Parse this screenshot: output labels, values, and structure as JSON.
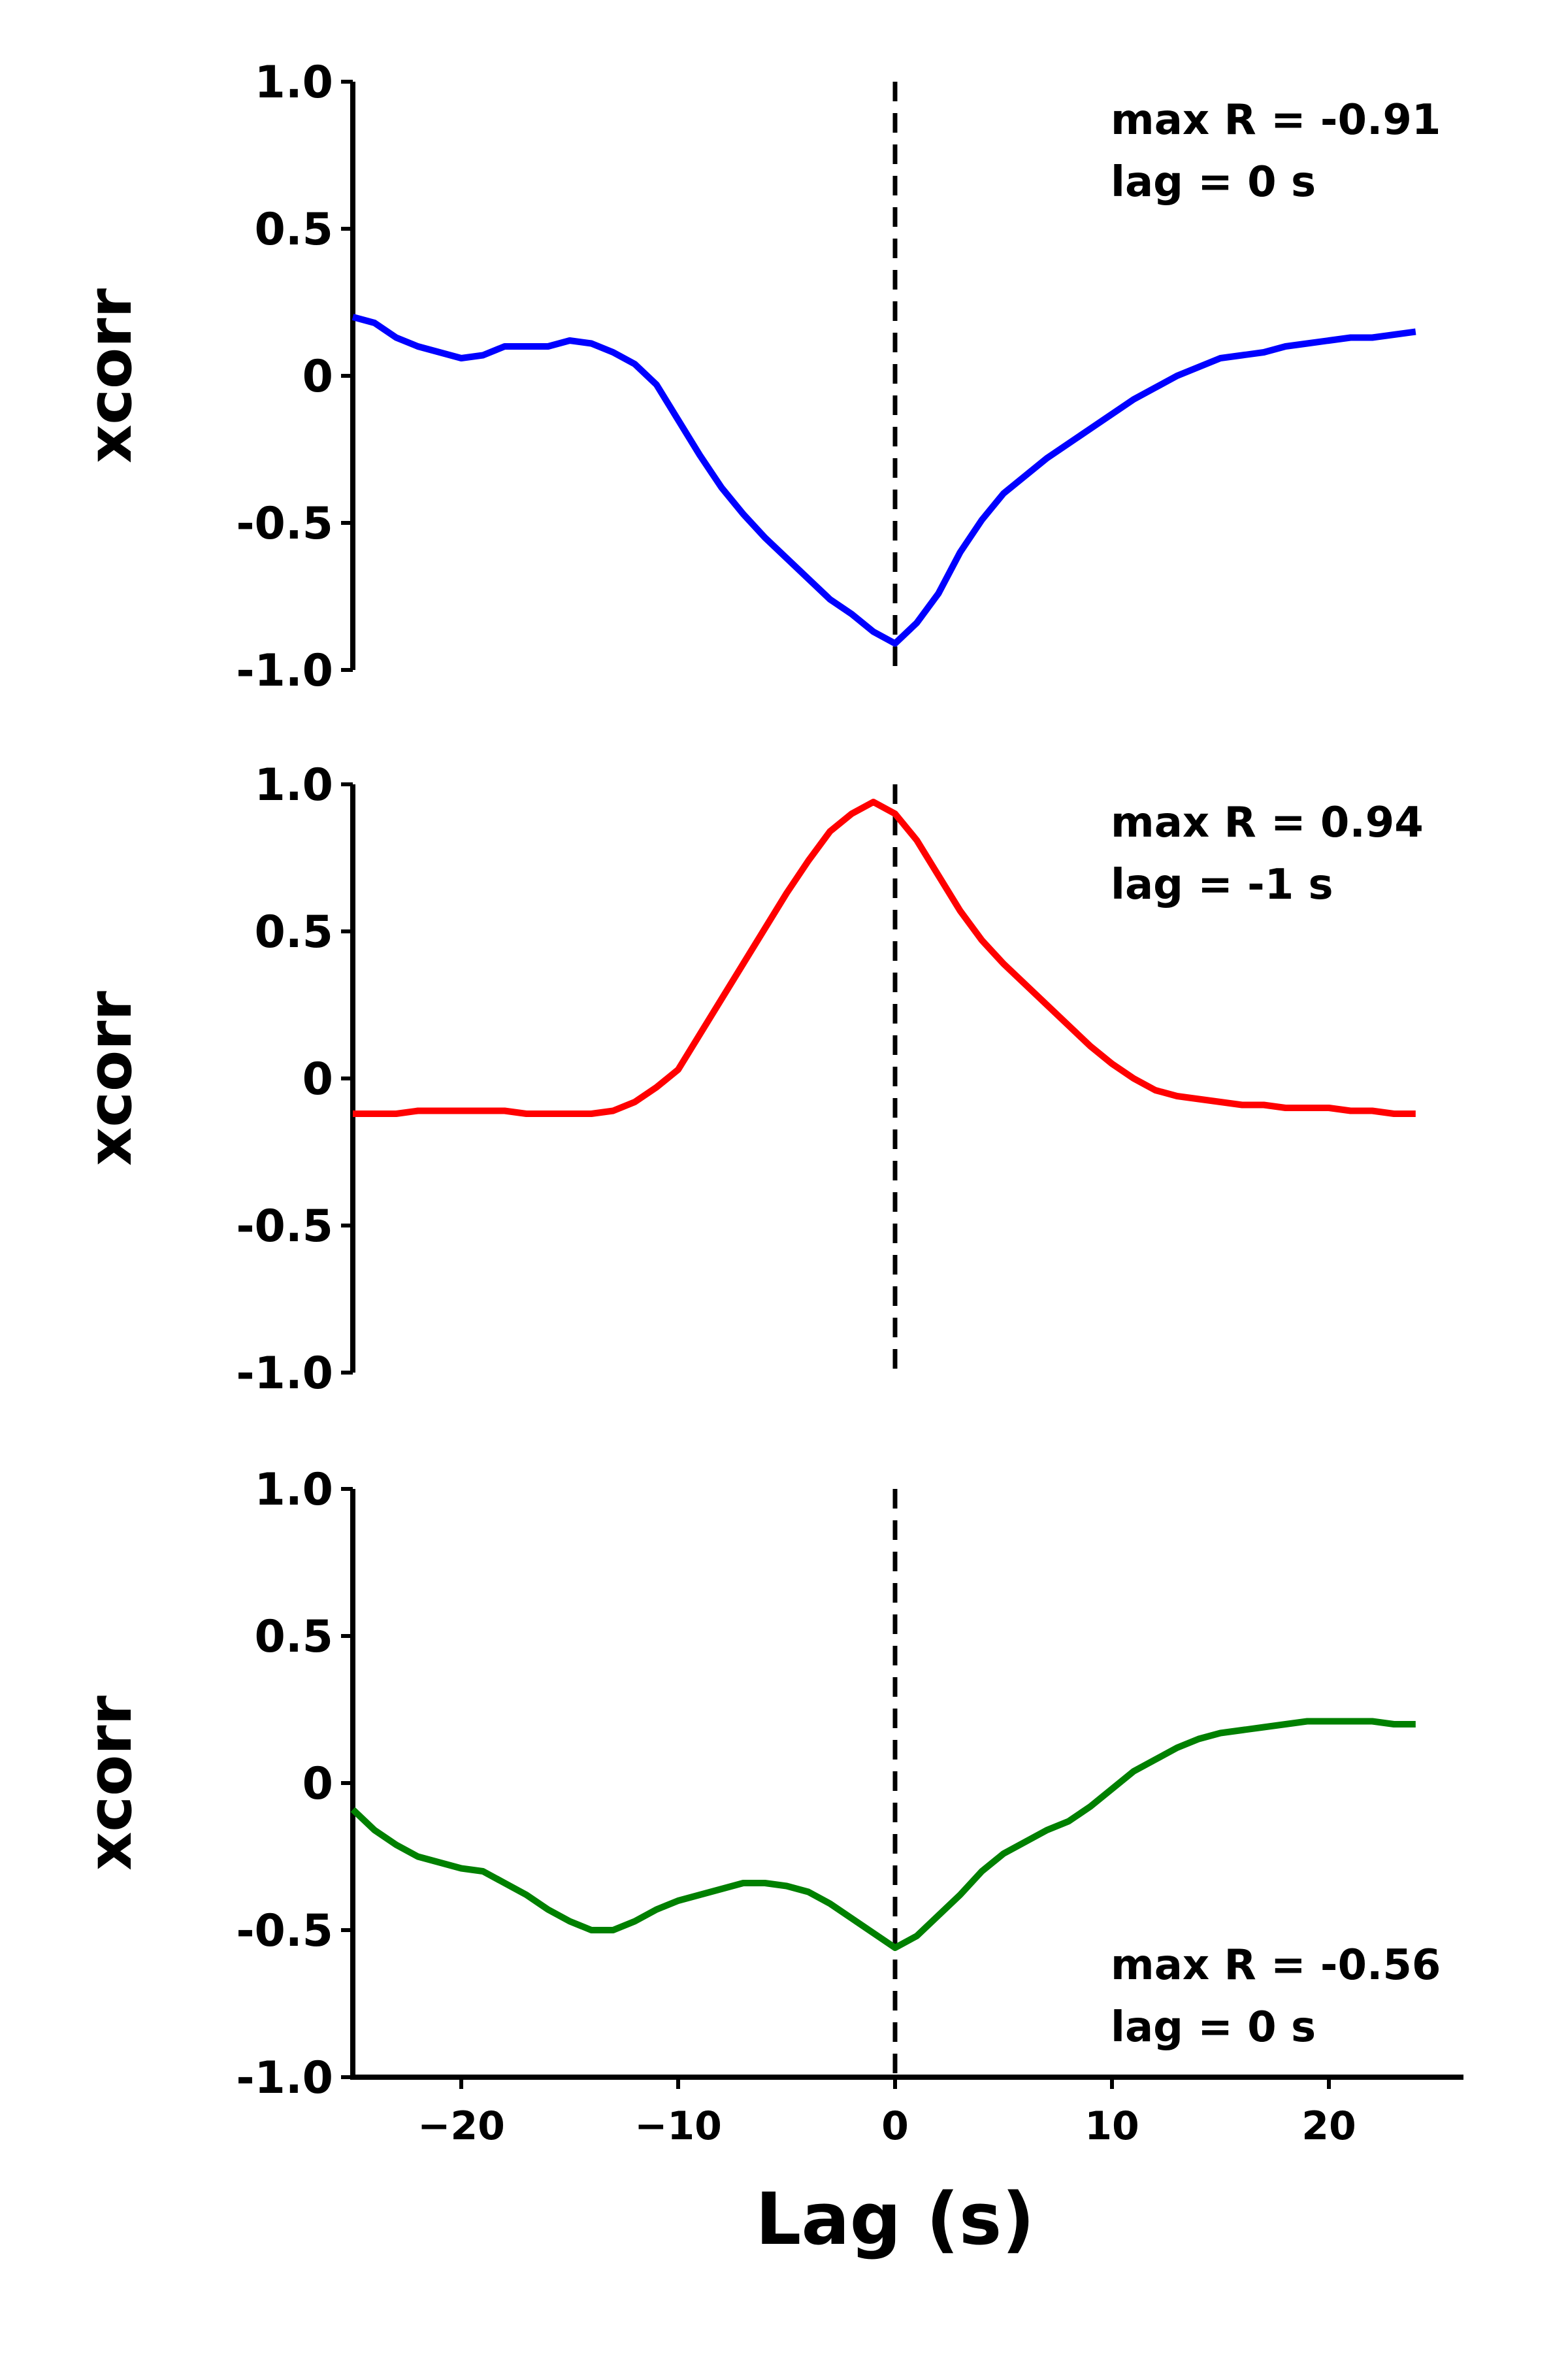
{
  "chart_data": [
    {
      "type": "line",
      "ylabel": "xcorr",
      "xlabel": "",
      "xlim": [
        -25,
        25
      ],
      "ylim": [
        -1.0,
        1.0
      ],
      "yticks": [
        "1.0",
        "0.5",
        "0",
        "-0.5",
        "-1.0"
      ],
      "xticks": [],
      "annotation": [
        "max R = -0.91",
        "lag = 0 s"
      ],
      "annotation_position": "top-right",
      "reference_line": {
        "x": 0,
        "style": "dashed"
      },
      "grid": false,
      "series": [
        {
          "color": "#0000ff",
          "x": [
            -25,
            -24,
            -23,
            -22,
            -21,
            -20,
            -19,
            -18,
            -17,
            -16,
            -15,
            -14,
            -13,
            -12,
            -11,
            -10,
            -9,
            -8,
            -7,
            -6,
            -5,
            -4,
            -3,
            -2,
            -1,
            0,
            1,
            2,
            3,
            4,
            5,
            6,
            7,
            8,
            9,
            10,
            11,
            12,
            13,
            14,
            15,
            16,
            17,
            18,
            19,
            20,
            21,
            22,
            23,
            24
          ],
          "y": [
            0.2,
            0.18,
            0.13,
            0.1,
            0.08,
            0.06,
            0.07,
            0.1,
            0.1,
            0.1,
            0.12,
            0.11,
            0.08,
            0.04,
            -0.03,
            -0.15,
            -0.27,
            -0.38,
            -0.47,
            -0.55,
            -0.62,
            -0.69,
            -0.76,
            -0.81,
            -0.87,
            -0.91,
            -0.84,
            -0.74,
            -0.6,
            -0.49,
            -0.4,
            -0.34,
            -0.28,
            -0.23,
            -0.18,
            -0.13,
            -0.08,
            -0.04,
            0.0,
            0.03,
            0.06,
            0.07,
            0.08,
            0.1,
            0.11,
            0.12,
            0.13,
            0.13,
            0.14,
            0.15
          ]
        }
      ]
    },
    {
      "type": "line",
      "ylabel": "xcorr",
      "xlabel": "",
      "xlim": [
        -25,
        25
      ],
      "ylim": [
        -1.0,
        1.0
      ],
      "yticks": [
        "1.0",
        "0.5",
        "0",
        "-0.5",
        "-1.0"
      ],
      "xticks": [],
      "annotation": [
        "max R = 0.94",
        "lag = -1 s"
      ],
      "annotation_position": "top-right",
      "reference_line": {
        "x": 0,
        "style": "dashed"
      },
      "grid": false,
      "series": [
        {
          "color": "#ff0000",
          "x": [
            -25,
            -24,
            -23,
            -22,
            -21,
            -20,
            -19,
            -18,
            -17,
            -16,
            -15,
            -14,
            -13,
            -12,
            -11,
            -10,
            -9,
            -8,
            -7,
            -6,
            -5,
            -4,
            -3,
            -2,
            -1,
            0,
            1,
            2,
            3,
            4,
            5,
            6,
            7,
            8,
            9,
            10,
            11,
            12,
            13,
            14,
            15,
            16,
            17,
            18,
            19,
            20,
            21,
            22,
            23,
            24
          ],
          "y": [
            -0.12,
            -0.12,
            -0.12,
            -0.11,
            -0.11,
            -0.11,
            -0.11,
            -0.11,
            -0.12,
            -0.12,
            -0.12,
            -0.12,
            -0.11,
            -0.08,
            -0.03,
            0.03,
            0.15,
            0.27,
            0.39,
            0.51,
            0.63,
            0.74,
            0.84,
            0.9,
            0.94,
            0.9,
            0.81,
            0.69,
            0.57,
            0.47,
            0.39,
            0.32,
            0.25,
            0.18,
            0.11,
            0.05,
            0.0,
            -0.04,
            -0.06,
            -0.07,
            -0.08,
            -0.09,
            -0.09,
            -0.1,
            -0.1,
            -0.1,
            -0.11,
            -0.11,
            -0.12,
            -0.12
          ]
        }
      ]
    },
    {
      "type": "line",
      "ylabel": "xcorr",
      "xlabel": "Lag (s)",
      "xlim": [
        -25,
        25
      ],
      "ylim": [
        -1.0,
        1.0
      ],
      "yticks": [
        "1.0",
        "0.5",
        "0",
        "-0.5",
        "-1.0"
      ],
      "xticks": [
        -20,
        -10,
        0,
        10,
        20
      ],
      "xtick_labels": [
        "−20",
        "−10",
        "0",
        "10",
        "20"
      ],
      "annotation": [
        "max R = -0.56",
        "lag = 0 s"
      ],
      "annotation_position": "bottom-right",
      "reference_line": {
        "x": 0,
        "style": "dashed"
      },
      "grid": false,
      "series": [
        {
          "color": "#008000",
          "x": [
            -25,
            -24,
            -23,
            -22,
            -21,
            -20,
            -19,
            -18,
            -17,
            -16,
            -15,
            -14,
            -13,
            -12,
            -11,
            -10,
            -9,
            -8,
            -7,
            -6,
            -5,
            -4,
            -3,
            -2,
            -1,
            0,
            1,
            2,
            3,
            4,
            5,
            6,
            7,
            8,
            9,
            10,
            11,
            12,
            13,
            14,
            15,
            16,
            17,
            18,
            19,
            20,
            21,
            22,
            23,
            24
          ],
          "y": [
            -0.09,
            -0.16,
            -0.21,
            -0.25,
            -0.27,
            -0.29,
            -0.3,
            -0.34,
            -0.38,
            -0.43,
            -0.47,
            -0.5,
            -0.5,
            -0.47,
            -0.43,
            -0.4,
            -0.38,
            -0.36,
            -0.34,
            -0.34,
            -0.35,
            -0.37,
            -0.41,
            -0.46,
            -0.51,
            -0.56,
            -0.52,
            -0.45,
            -0.38,
            -0.3,
            -0.24,
            -0.2,
            -0.16,
            -0.13,
            -0.08,
            -0.02,
            0.04,
            0.08,
            0.12,
            0.15,
            0.17,
            0.18,
            0.19,
            0.2,
            0.21,
            0.21,
            0.21,
            0.21,
            0.2,
            0.2
          ]
        }
      ]
    }
  ]
}
